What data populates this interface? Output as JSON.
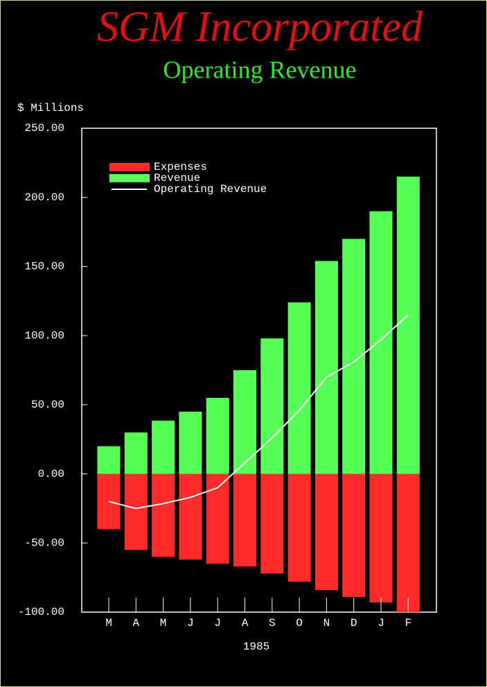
{
  "chart_data": {
    "type": "bar",
    "title": "SGM Incorporated",
    "subtitle": "Operating Revenue",
    "y_label": "$ Millions",
    "x_label": "1985",
    "categories": [
      "M",
      "A",
      "M",
      "J",
      "J",
      "A",
      "S",
      "O",
      "N",
      "D",
      "J",
      "F"
    ],
    "series": [
      {
        "name": "Expenses",
        "color": "#ff2a2a",
        "type": "bar",
        "values": [
          -40,
          -55,
          -60,
          -62,
          -65,
          -67,
          -72,
          -78,
          -84,
          -89,
          -93,
          -100
        ]
      },
      {
        "name": "Revenue",
        "color": "#55ff55",
        "type": "bar",
        "values": [
          20,
          30,
          38.5,
          45,
          55,
          75,
          98,
          124,
          154,
          170,
          190,
          215
        ]
      },
      {
        "name": "Operating Revenue",
        "color": "#ffffff",
        "type": "line",
        "values": [
          -20,
          -25,
          -21.5,
          -17,
          -10,
          8,
          26,
          46,
          70,
          81,
          97,
          115
        ]
      }
    ],
    "ylim": [
      -100,
      250
    ],
    "yticks": [
      {
        "value": -100,
        "label": "-100.00"
      },
      {
        "value": -50,
        "label": "-50.00"
      },
      {
        "value": 0,
        "label": "0.00"
      },
      {
        "value": 50,
        "label": "50.00"
      },
      {
        "value": 100,
        "label": "100.00"
      },
      {
        "value": 150,
        "label": "150.00"
      },
      {
        "value": 200,
        "label": "200.00"
      },
      {
        "value": 250,
        "label": "250.00"
      }
    ],
    "legend": "upper left"
  }
}
